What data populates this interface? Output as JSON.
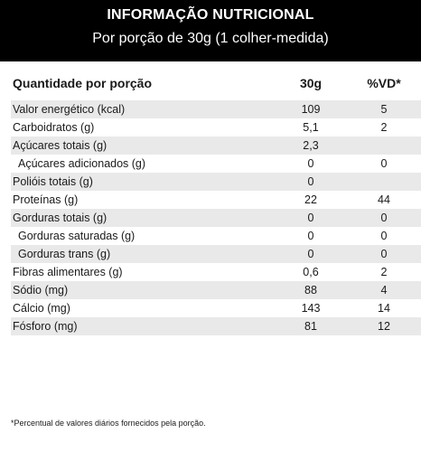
{
  "header": {
    "title": "INFORMAÇÃO NUTRICIONAL",
    "subtitle": "Por porção de 30g (1 colher-medida)"
  },
  "columns": {
    "name": "Quantidade por porção",
    "amount": "30g",
    "dv": "%VD*"
  },
  "rows": [
    {
      "name": "Valor energético (kcal)",
      "amount": "109",
      "dv": "5",
      "indent": false
    },
    {
      "name": "Carboidratos (g)",
      "amount": "5,1",
      "dv": "2",
      "indent": false
    },
    {
      "name": "Açúcares totais (g)",
      "amount": "2,3",
      "dv": "",
      "indent": false
    },
    {
      "name": "Açúcares adicionados (g)",
      "amount": "0",
      "dv": "0",
      "indent": true
    },
    {
      "name": "Polióis totais (g)",
      "amount": "0",
      "dv": "",
      "indent": false
    },
    {
      "name": "Proteínas (g)",
      "amount": "22",
      "dv": "44",
      "indent": false
    },
    {
      "name": "Gorduras totais (g)",
      "amount": "0",
      "dv": "0",
      "indent": false
    },
    {
      "name": "Gorduras saturadas (g)",
      "amount": "0",
      "dv": "0",
      "indent": true
    },
    {
      "name": "Gorduras trans (g)",
      "amount": "0",
      "dv": "0",
      "indent": true
    },
    {
      "name": "Fibras alimentares (g)",
      "amount": "0,6",
      "dv": "2",
      "indent": false
    },
    {
      "name": "Sódio (mg)",
      "amount": "88",
      "dv": "4",
      "indent": false
    },
    {
      "name": "Cálcio (mg)",
      "amount": "143",
      "dv": "14",
      "indent": false
    },
    {
      "name": "Fósforo (mg)",
      "amount": "81",
      "dv": "12",
      "indent": false
    }
  ],
  "footnote": "*Percentual de valores diários fornecidos pela porção."
}
